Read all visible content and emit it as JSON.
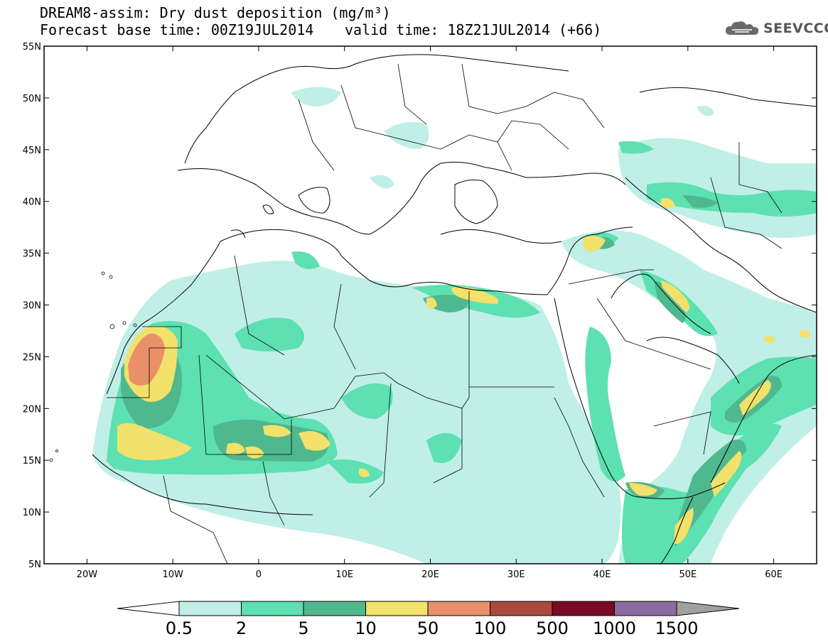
{
  "header": {
    "title_line1": "DREAM8-assim: Dry dust deposition (mg/m³)",
    "title_line2": "Forecast base time: 00Z19JUL2014",
    "valid_time": "valid time: 18Z21JUL2014 (+66)",
    "logo_text": "SEEVCCC",
    "logo_icon": "cloud-icon"
  },
  "map": {
    "lon_range": [
      -25,
      65
    ],
    "lat_range": [
      5,
      55
    ],
    "lat_ticks": [
      {
        "value": 55,
        "label": "55N"
      },
      {
        "value": 50,
        "label": "50N"
      },
      {
        "value": 45,
        "label": "45N"
      },
      {
        "value": 40,
        "label": "40N"
      },
      {
        "value": 35,
        "label": "35N"
      },
      {
        "value": 30,
        "label": "30N"
      },
      {
        "value": 25,
        "label": "25N"
      },
      {
        "value": 20,
        "label": "20N"
      },
      {
        "value": 15,
        "label": "15N"
      },
      {
        "value": 10,
        "label": "10N"
      },
      {
        "value": 5,
        "label": "5N"
      }
    ],
    "lon_ticks": [
      {
        "value": -20,
        "label": "20W"
      },
      {
        "value": -10,
        "label": "10W"
      },
      {
        "value": 0,
        "label": "0"
      },
      {
        "value": 10,
        "label": "10E"
      },
      {
        "value": 20,
        "label": "20E"
      },
      {
        "value": 30,
        "label": "30E"
      },
      {
        "value": 40,
        "label": "40E"
      },
      {
        "value": 50,
        "label": "50E"
      },
      {
        "value": 60,
        "label": "60E"
      }
    ]
  },
  "colorbar": {
    "left_arrow_color": "#ffffff",
    "right_arrow_color": "#a0a0a0",
    "bins": [
      {
        "color": "#c0efe7"
      },
      {
        "color": "#5de0b2"
      },
      {
        "color": "#50b88e"
      },
      {
        "color": "#f2e16b"
      },
      {
        "color": "#e9906a"
      },
      {
        "color": "#aa4a3e"
      },
      {
        "color": "#7a0a26"
      },
      {
        "color": "#8c6ca0"
      }
    ],
    "labels": [
      "0.5",
      "2",
      "5",
      "10",
      "50",
      "100",
      "500",
      "1000",
      "1500"
    ]
  }
}
